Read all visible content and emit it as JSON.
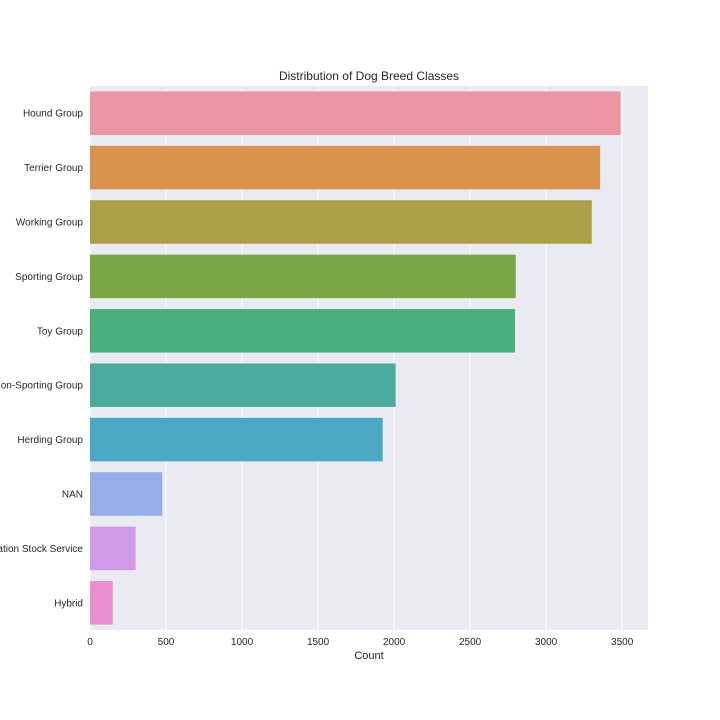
{
  "chart_data": {
    "type": "bar",
    "orientation": "horizontal",
    "title": "Distribution of Dog Breed Classes",
    "xlabel": "Count",
    "ylabel": "",
    "xlim": [
      0,
      3670
    ],
    "xticks": [
      0,
      500,
      1000,
      1500,
      2000,
      2500,
      3000,
      3500
    ],
    "grid": true,
    "background": "#eaeaf2",
    "categories": [
      "Hound Group",
      "Terrier Group",
      "Working Group",
      "Sporting Group",
      "Toy Group",
      "Non-Sporting Group",
      "Herding Group",
      "NAN",
      "Foundation Stock Service",
      "Hybrid"
    ],
    "values": [
      3490,
      3355,
      3300,
      2800,
      2795,
      2010,
      1925,
      475,
      300,
      150
    ],
    "colors": [
      "#ec96a4",
      "#d8944f",
      "#ab9f47",
      "#7aa646",
      "#4aae7b",
      "#4aab9e",
      "#4aa8c4",
      "#95aeea",
      "#d09ae8",
      "#e98fd0"
    ]
  }
}
